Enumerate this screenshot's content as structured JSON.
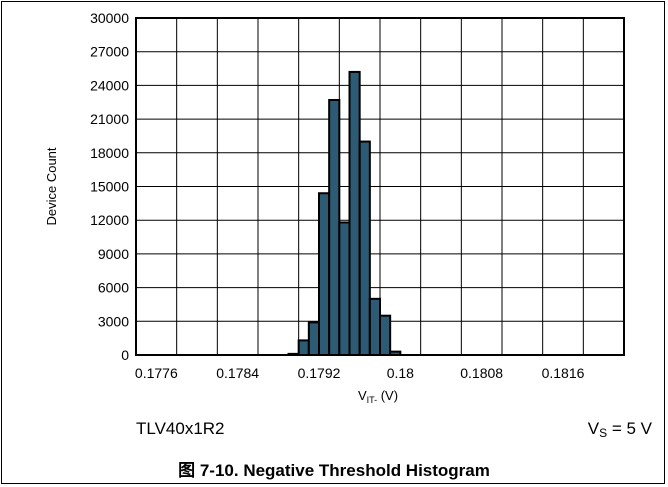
{
  "chart_data": {
    "type": "bar",
    "subtype": "histogram",
    "xlabel_main": "V",
    "xlabel_sub": "IT-",
    "xlabel_unit": " (V)",
    "ylabel": "Device Count",
    "xlim": [
      0.1774,
      0.1822
    ],
    "ylim": [
      0,
      30000
    ],
    "x_ticks": [
      {
        "value": 0.1776,
        "label": "0.1776"
      },
      {
        "value": 0.1784,
        "label": "0.1784"
      },
      {
        "value": 0.1792,
        "label": "0.1792"
      },
      {
        "value": 0.18,
        "label": "0.18"
      },
      {
        "value": 0.1808,
        "label": "0.1808"
      },
      {
        "value": 0.1816,
        "label": "0.1816"
      }
    ],
    "x_grid": [
      0.1774,
      0.1778,
      0.1782,
      0.1786,
      0.179,
      0.1794,
      0.1798,
      0.1802,
      0.1806,
      0.181,
      0.1814,
      0.1818,
      0.1822
    ],
    "y_ticks": [
      {
        "value": 0,
        "label": "0"
      },
      {
        "value": 3000,
        "label": "3000"
      },
      {
        "value": 6000,
        "label": "6000"
      },
      {
        "value": 9000,
        "label": "9000"
      },
      {
        "value": 12000,
        "label": "12000"
      },
      {
        "value": 15000,
        "label": "15000"
      },
      {
        "value": 18000,
        "label": "18000"
      },
      {
        "value": 21000,
        "label": "21000"
      },
      {
        "value": 24000,
        "label": "24000"
      },
      {
        "value": 27000,
        "label": "27000"
      },
      {
        "value": 30000,
        "label": "30000"
      }
    ],
    "grid": true,
    "bin_width": 0.0001,
    "bins": [
      {
        "x0": 0.1789,
        "value": 100
      },
      {
        "x0": 0.179,
        "value": 1300
      },
      {
        "x0": 0.1791,
        "value": 2900
      },
      {
        "x0": 0.1792,
        "value": 14400
      },
      {
        "x0": 0.1793,
        "value": 22700
      },
      {
        "x0": 0.1794,
        "value": 11800
      },
      {
        "x0": 0.1795,
        "value": 25200
      },
      {
        "x0": 0.1796,
        "value": 19000
      },
      {
        "x0": 0.1797,
        "value": 5000
      },
      {
        "x0": 0.1798,
        "value": 3500
      },
      {
        "x0": 0.1799,
        "value": 300
      }
    ],
    "bar_color": "#2d5b74",
    "bar_stroke": "#000000"
  },
  "footer": {
    "device": "TLV40x1R2",
    "condition_main": "V",
    "condition_sub": "S",
    "condition_value": " = 5 V"
  },
  "caption": "图 7-10. Negative Threshold Histogram"
}
